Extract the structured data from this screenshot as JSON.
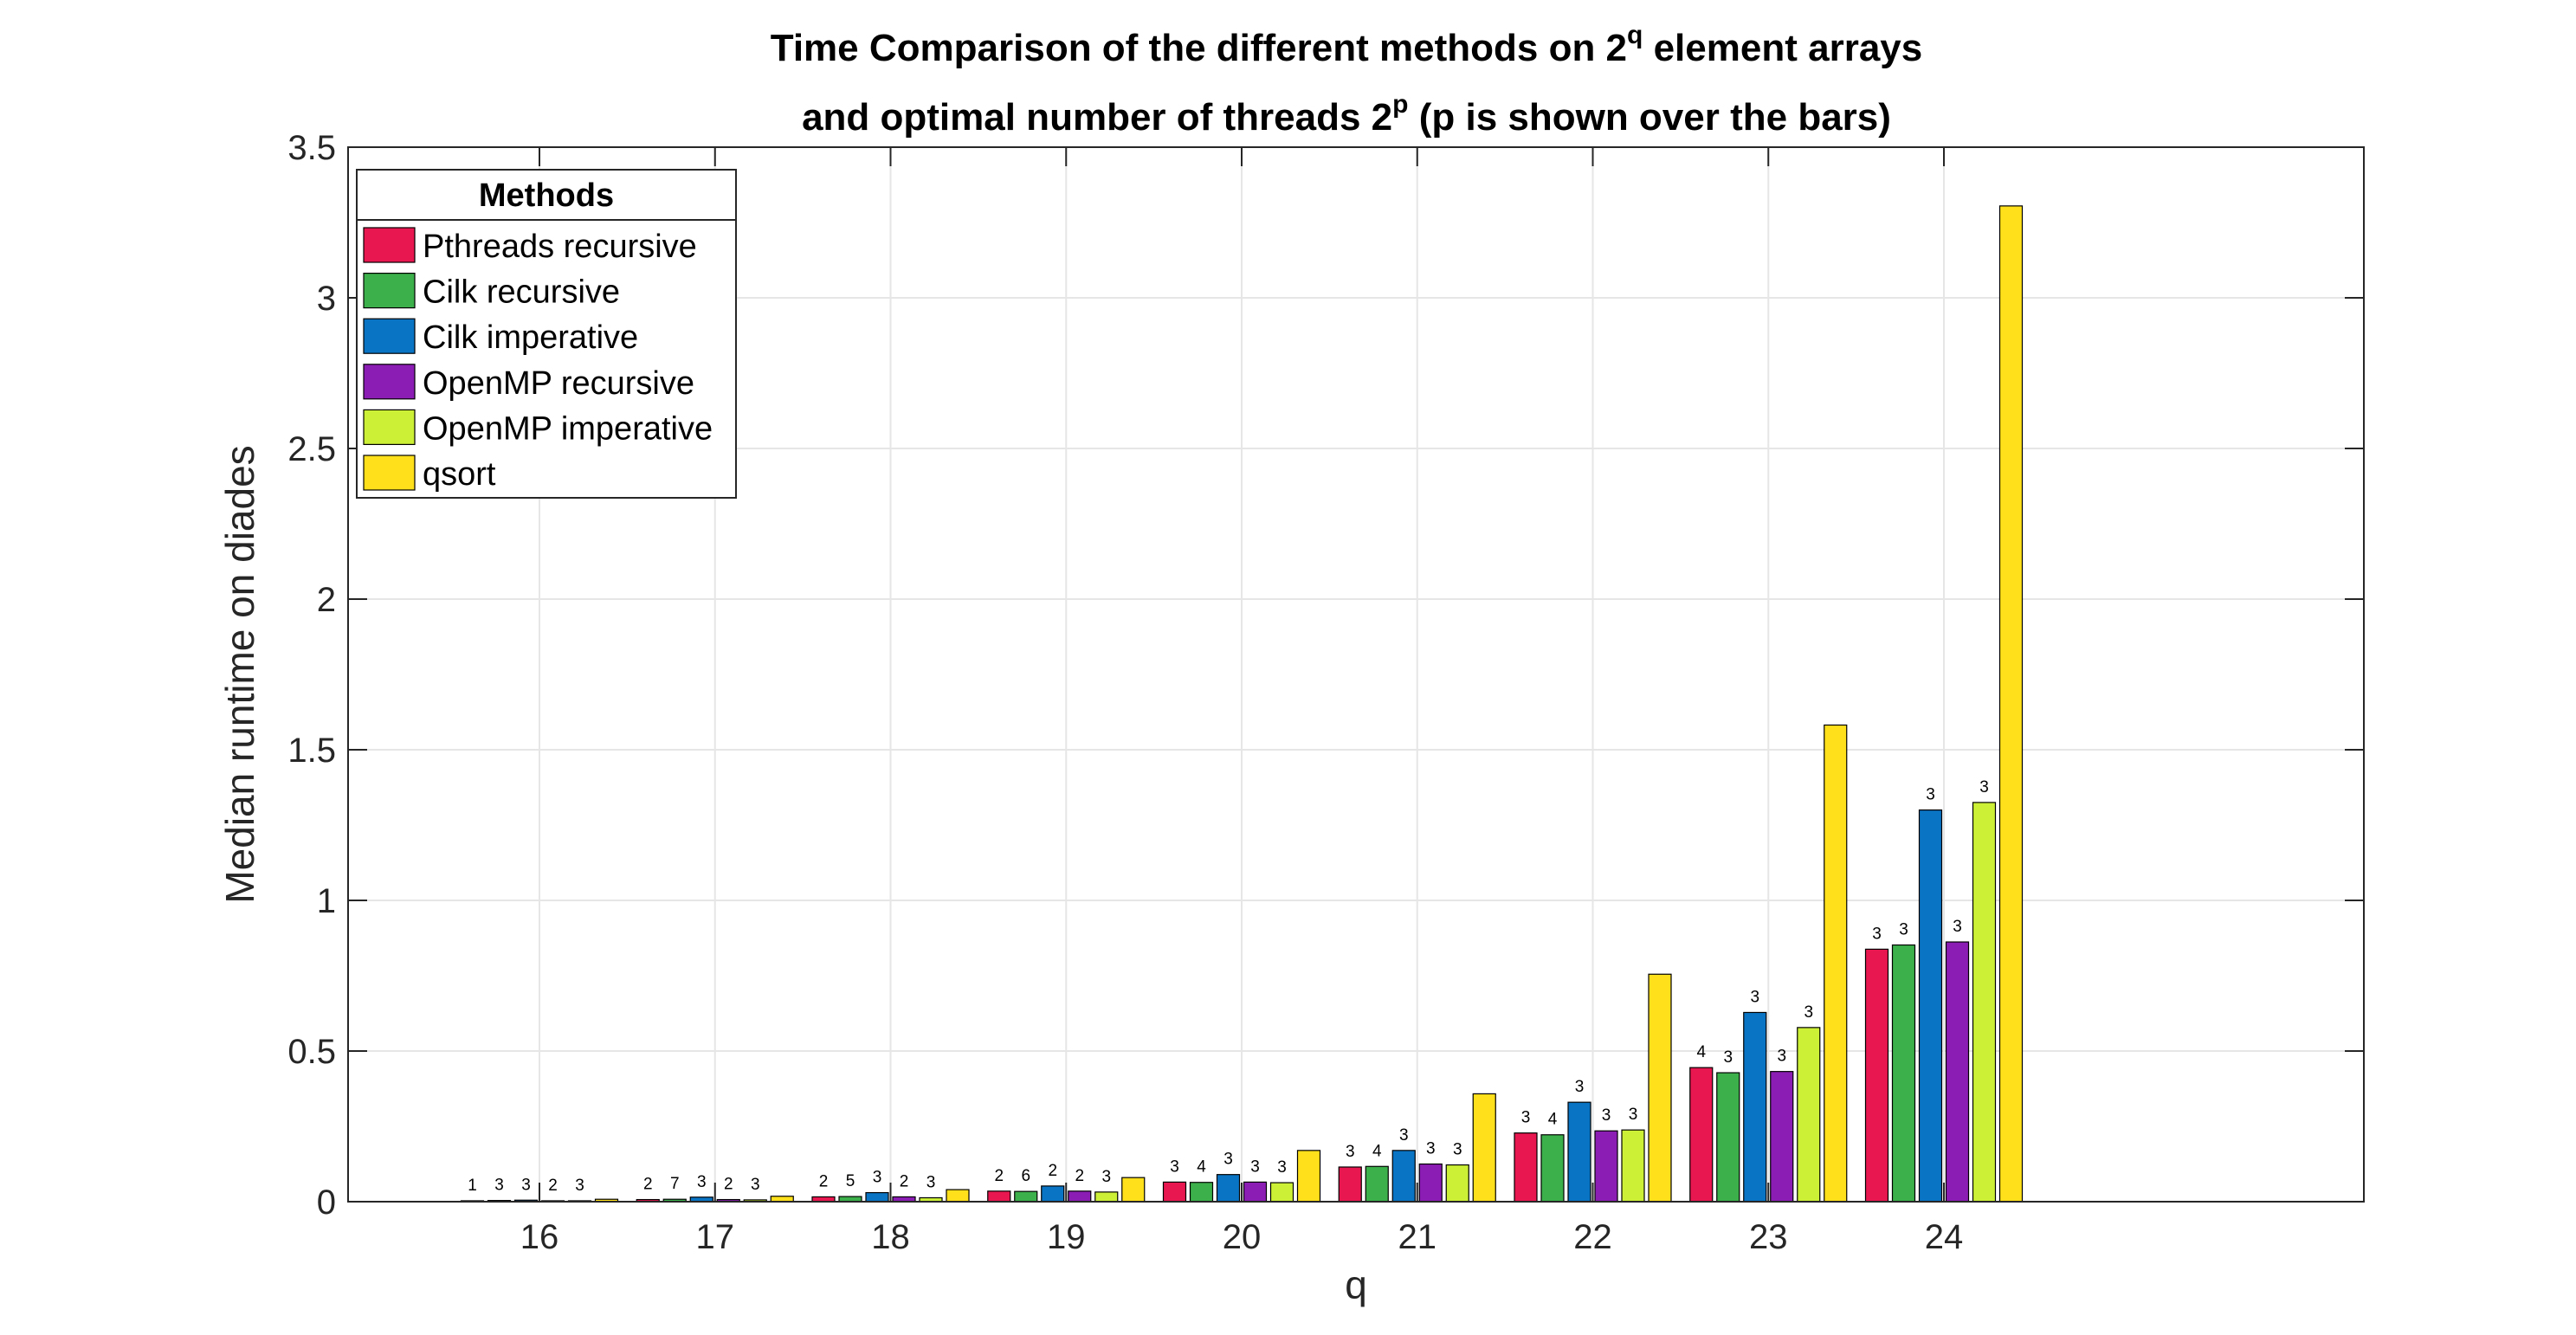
{
  "chart_data": {
    "type": "bar",
    "title": {
      "line1_pre": "Time Comparison of the different methods on 2",
      "line1_sup": "q",
      "line1_post": " element arrays",
      "line2_pre": "and optimal number of threads 2",
      "line2_sup": "p",
      "line2_post": " (p is shown over the bars)"
    },
    "xlabel": "q",
    "ylabel": "Median runtime on diades",
    "categories": [
      "16",
      "17",
      "18",
      "19",
      "20",
      "21",
      "22",
      "23",
      "24"
    ],
    "ylim": [
      0,
      3.5
    ],
    "yticks": [
      "0",
      "0.5",
      "1",
      "1.5",
      "2",
      "2.5",
      "3",
      "3.5"
    ],
    "grid": true,
    "legend": {
      "title": "Methods",
      "position": "top-left"
    },
    "series": [
      {
        "name": "Pthreads recursive",
        "color": "#E8174F",
        "values": [
          0.003,
          0.007,
          0.016,
          0.035,
          0.065,
          0.115,
          0.228,
          0.445,
          0.838
        ],
        "labels": [
          "1",
          "2",
          "2",
          "2",
          "3",
          "3",
          "3",
          "4",
          "3"
        ]
      },
      {
        "name": "Cilk recursive",
        "color": "#3CB04A",
        "values": [
          0.004,
          0.008,
          0.017,
          0.034,
          0.064,
          0.117,
          0.222,
          0.428,
          0.852
        ],
        "labels": [
          "3",
          "7",
          "5",
          "6",
          "4",
          "4",
          "4",
          "3",
          "3"
        ]
      },
      {
        "name": "Cilk imperative",
        "color": "#0A74C4",
        "values": [
          0.005,
          0.015,
          0.03,
          0.052,
          0.09,
          0.17,
          0.33,
          0.628,
          1.3
        ],
        "labels": [
          "3",
          "3",
          "3",
          "2",
          "3",
          "3",
          "3",
          "3",
          "3"
        ]
      },
      {
        "name": "OpenMP recursive",
        "color": "#8C1DB4",
        "values": [
          0.003,
          0.007,
          0.016,
          0.035,
          0.065,
          0.125,
          0.235,
          0.432,
          0.862
        ],
        "labels": [
          "2",
          "2",
          "2",
          "2",
          "3",
          "3",
          "3",
          "3",
          "3"
        ]
      },
      {
        "name": "OpenMP imperative",
        "color": "#CCF036",
        "values": [
          0.003,
          0.006,
          0.013,
          0.032,
          0.063,
          0.122,
          0.238,
          0.578,
          1.325
        ],
        "labels": [
          "3",
          "3",
          "3",
          "3",
          "3",
          "3",
          "3",
          "3",
          "3"
        ]
      },
      {
        "name": "qsort",
        "color": "#FFE01A",
        "values": [
          0.008,
          0.018,
          0.04,
          0.08,
          0.17,
          0.358,
          0.755,
          1.582,
          3.305
        ],
        "labels": [
          "",
          "",
          "",
          "",
          "",
          "",
          "",
          "",
          ""
        ]
      }
    ]
  }
}
